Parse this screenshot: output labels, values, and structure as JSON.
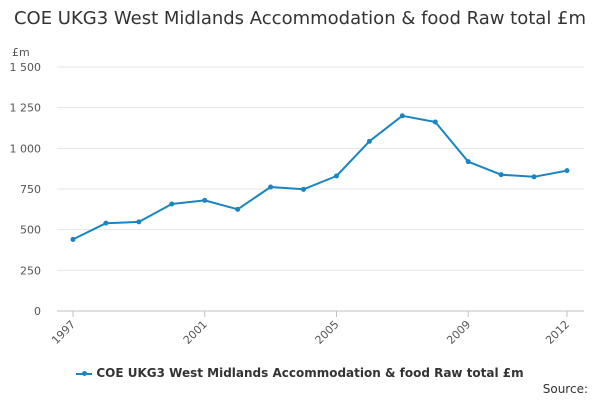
{
  "chart_data": {
    "type": "line",
    "title": "COE UKG3 West Midlands Accommodation & food Raw total £m",
    "ylabel": "£m",
    "xlabel": "",
    "x": [
      1997,
      1998,
      1999,
      2000,
      2001,
      2002,
      2003,
      2004,
      2005,
      2006,
      2007,
      2008,
      2009,
      2010,
      2011,
      2012
    ],
    "x_tick_labels": [
      "1997",
      "2001",
      "2005",
      "2009",
      "2012"
    ],
    "y_tick_labels": [
      "0",
      "250",
      "500",
      "750",
      "1 000",
      "1 250",
      "1 500"
    ],
    "ylim": [
      0,
      1500
    ],
    "grid": true,
    "legend_position": "bottom",
    "series": [
      {
        "name": "COE UKG3 West Midlands Accommodation & food Raw total £m",
        "color": "#1a85c1",
        "values": [
          440,
          540,
          548,
          658,
          680,
          625,
          762,
          748,
          830,
          1043,
          1200,
          1162,
          918,
          838,
          825,
          863
        ]
      }
    ]
  },
  "source_label": "Source:"
}
